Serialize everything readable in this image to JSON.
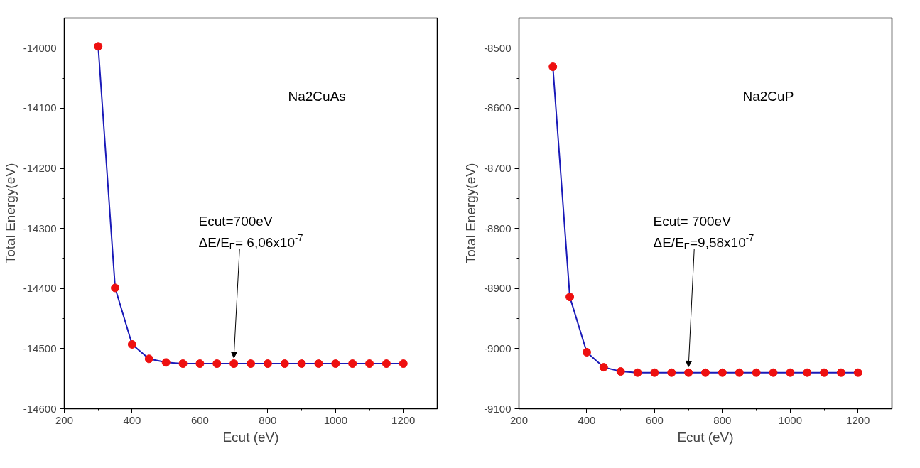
{
  "chart_data": [
    {
      "type": "line",
      "xlabel": "Ecut (eV)",
      "ylabel": "Total Energy(eV)",
      "marker": "circle",
      "line_style": "solid",
      "x": [
        300,
        350,
        400,
        450,
        500,
        550,
        600,
        650,
        700,
        750,
        800,
        850,
        900,
        950,
        1000,
        1050,
        1100,
        1150,
        1200
      ],
      "series": [
        {
          "color": "#1a1ab8",
          "values": [
            -13997,
            -14399,
            -14493,
            -14517,
            -14523,
            -14525,
            -14525,
            -14525,
            -14525,
            -14525,
            -14525,
            -14525,
            -14525,
            -14525,
            -14525,
            -14525,
            -14525,
            -14525,
            -14525
          ]
        }
      ],
      "xlim": [
        200,
        1300
      ],
      "xticks": [
        200,
        400,
        600,
        800,
        1000,
        1200
      ],
      "ylim": [
        -14600,
        -13950
      ],
      "yticks": [
        -14600,
        -14500,
        -14400,
        -14300,
        -14200,
        -14100,
        -14000
      ],
      "annotations": [
        "Na2CuAs",
        {
          "text": "Ecut=700eV\nΔE/E$_{F}$= 6,06x10$^{-7}$",
          "x": 700,
          "y": -14525
        }
      ]
    },
    {
      "type": "line",
      "xlabel": "Ecut (eV)",
      "ylabel": "Total Energy(eV)",
      "marker": "circle",
      "line_style": "solid",
      "x": [
        300,
        350,
        400,
        450,
        500,
        550,
        600,
        650,
        700,
        750,
        800,
        850,
        900,
        950,
        1000,
        1050,
        1100,
        1150,
        1200
      ],
      "series": [
        {
          "color": "#1a1ab8",
          "values": [
            -8531,
            -8914,
            -9006,
            -9031,
            -9038,
            -9040,
            -9040,
            -9040,
            -9040,
            -9040,
            -9040,
            -9040,
            -9040,
            -9040,
            -9040,
            -9040,
            -9040,
            -9040,
            -9040
          ]
        }
      ],
      "xlim": [
        200,
        1300
      ],
      "xticks": [
        200,
        400,
        600,
        800,
        1000,
        1200
      ],
      "ylim": [
        -9100,
        -8450
      ],
      "yticks": [
        -9100,
        -9000,
        -8900,
        -8800,
        -8700,
        -8600,
        -8500
      ],
      "annotations": [
        "Na2CuP",
        {
          "text": "Ecut= 700eV\nΔE/E$_{F}$=9,58x10$^{-7}$",
          "x": 700,
          "y": -9040
        }
      ]
    }
  ]
}
